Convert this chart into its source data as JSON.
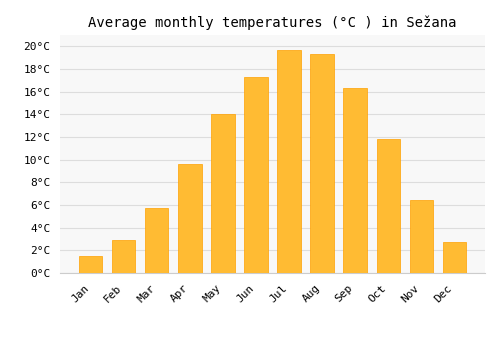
{
  "categories": [
    "Jan",
    "Feb",
    "Mar",
    "Apr",
    "May",
    "Jun",
    "Jul",
    "Aug",
    "Sep",
    "Oct",
    "Nov",
    "Dec"
  ],
  "values": [
    1.5,
    2.9,
    5.7,
    9.6,
    14.0,
    17.3,
    19.7,
    19.3,
    16.3,
    11.8,
    6.4,
    2.7
  ],
  "bar_color_main": "#FFBB33",
  "bar_color_edge": "#FFA000",
  "title": "Average monthly temperatures (°C ) in Sežana",
  "ylim": [
    0,
    21
  ],
  "yticks": [
    0,
    2,
    4,
    6,
    8,
    10,
    12,
    14,
    16,
    18,
    20
  ],
  "background_color": "#ffffff",
  "plot_bg_color": "#f8f8f8",
  "grid_color": "#dddddd",
  "title_fontsize": 10,
  "tick_fontsize": 8,
  "font_family": "monospace"
}
